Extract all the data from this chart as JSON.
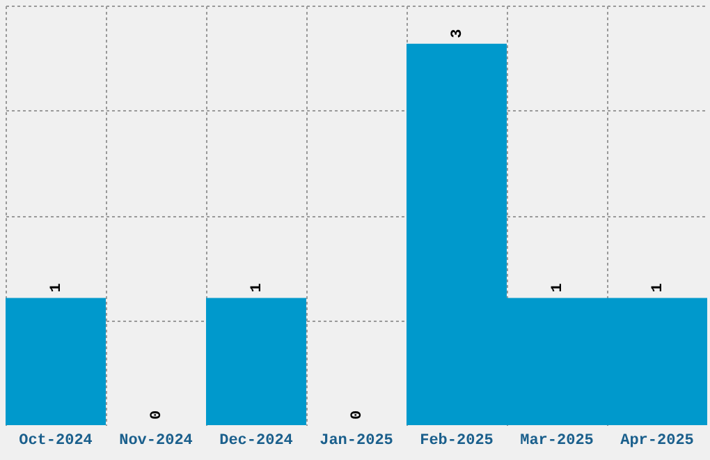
{
  "chart_data": {
    "type": "bar",
    "categories": [
      "Oct-2024",
      "Nov-2024",
      "Dec-2024",
      "Jan-2025",
      "Feb-2025",
      "Mar-2025",
      "Apr-2025"
    ],
    "values": [
      1,
      0,
      1,
      0,
      3,
      1,
      1
    ],
    "color": "#0099cc",
    "ylim": [
      0,
      3.3
    ],
    "yticks": [
      {
        "value": 0.825,
        "label": null
      },
      {
        "value": 1.65,
        "label": null
      },
      {
        "value": 2.475,
        "label": null
      },
      {
        "value": 3.3,
        "label": null
      }
    ],
    "grid": true,
    "data_labels": true,
    "tick_labels": "x"
  }
}
